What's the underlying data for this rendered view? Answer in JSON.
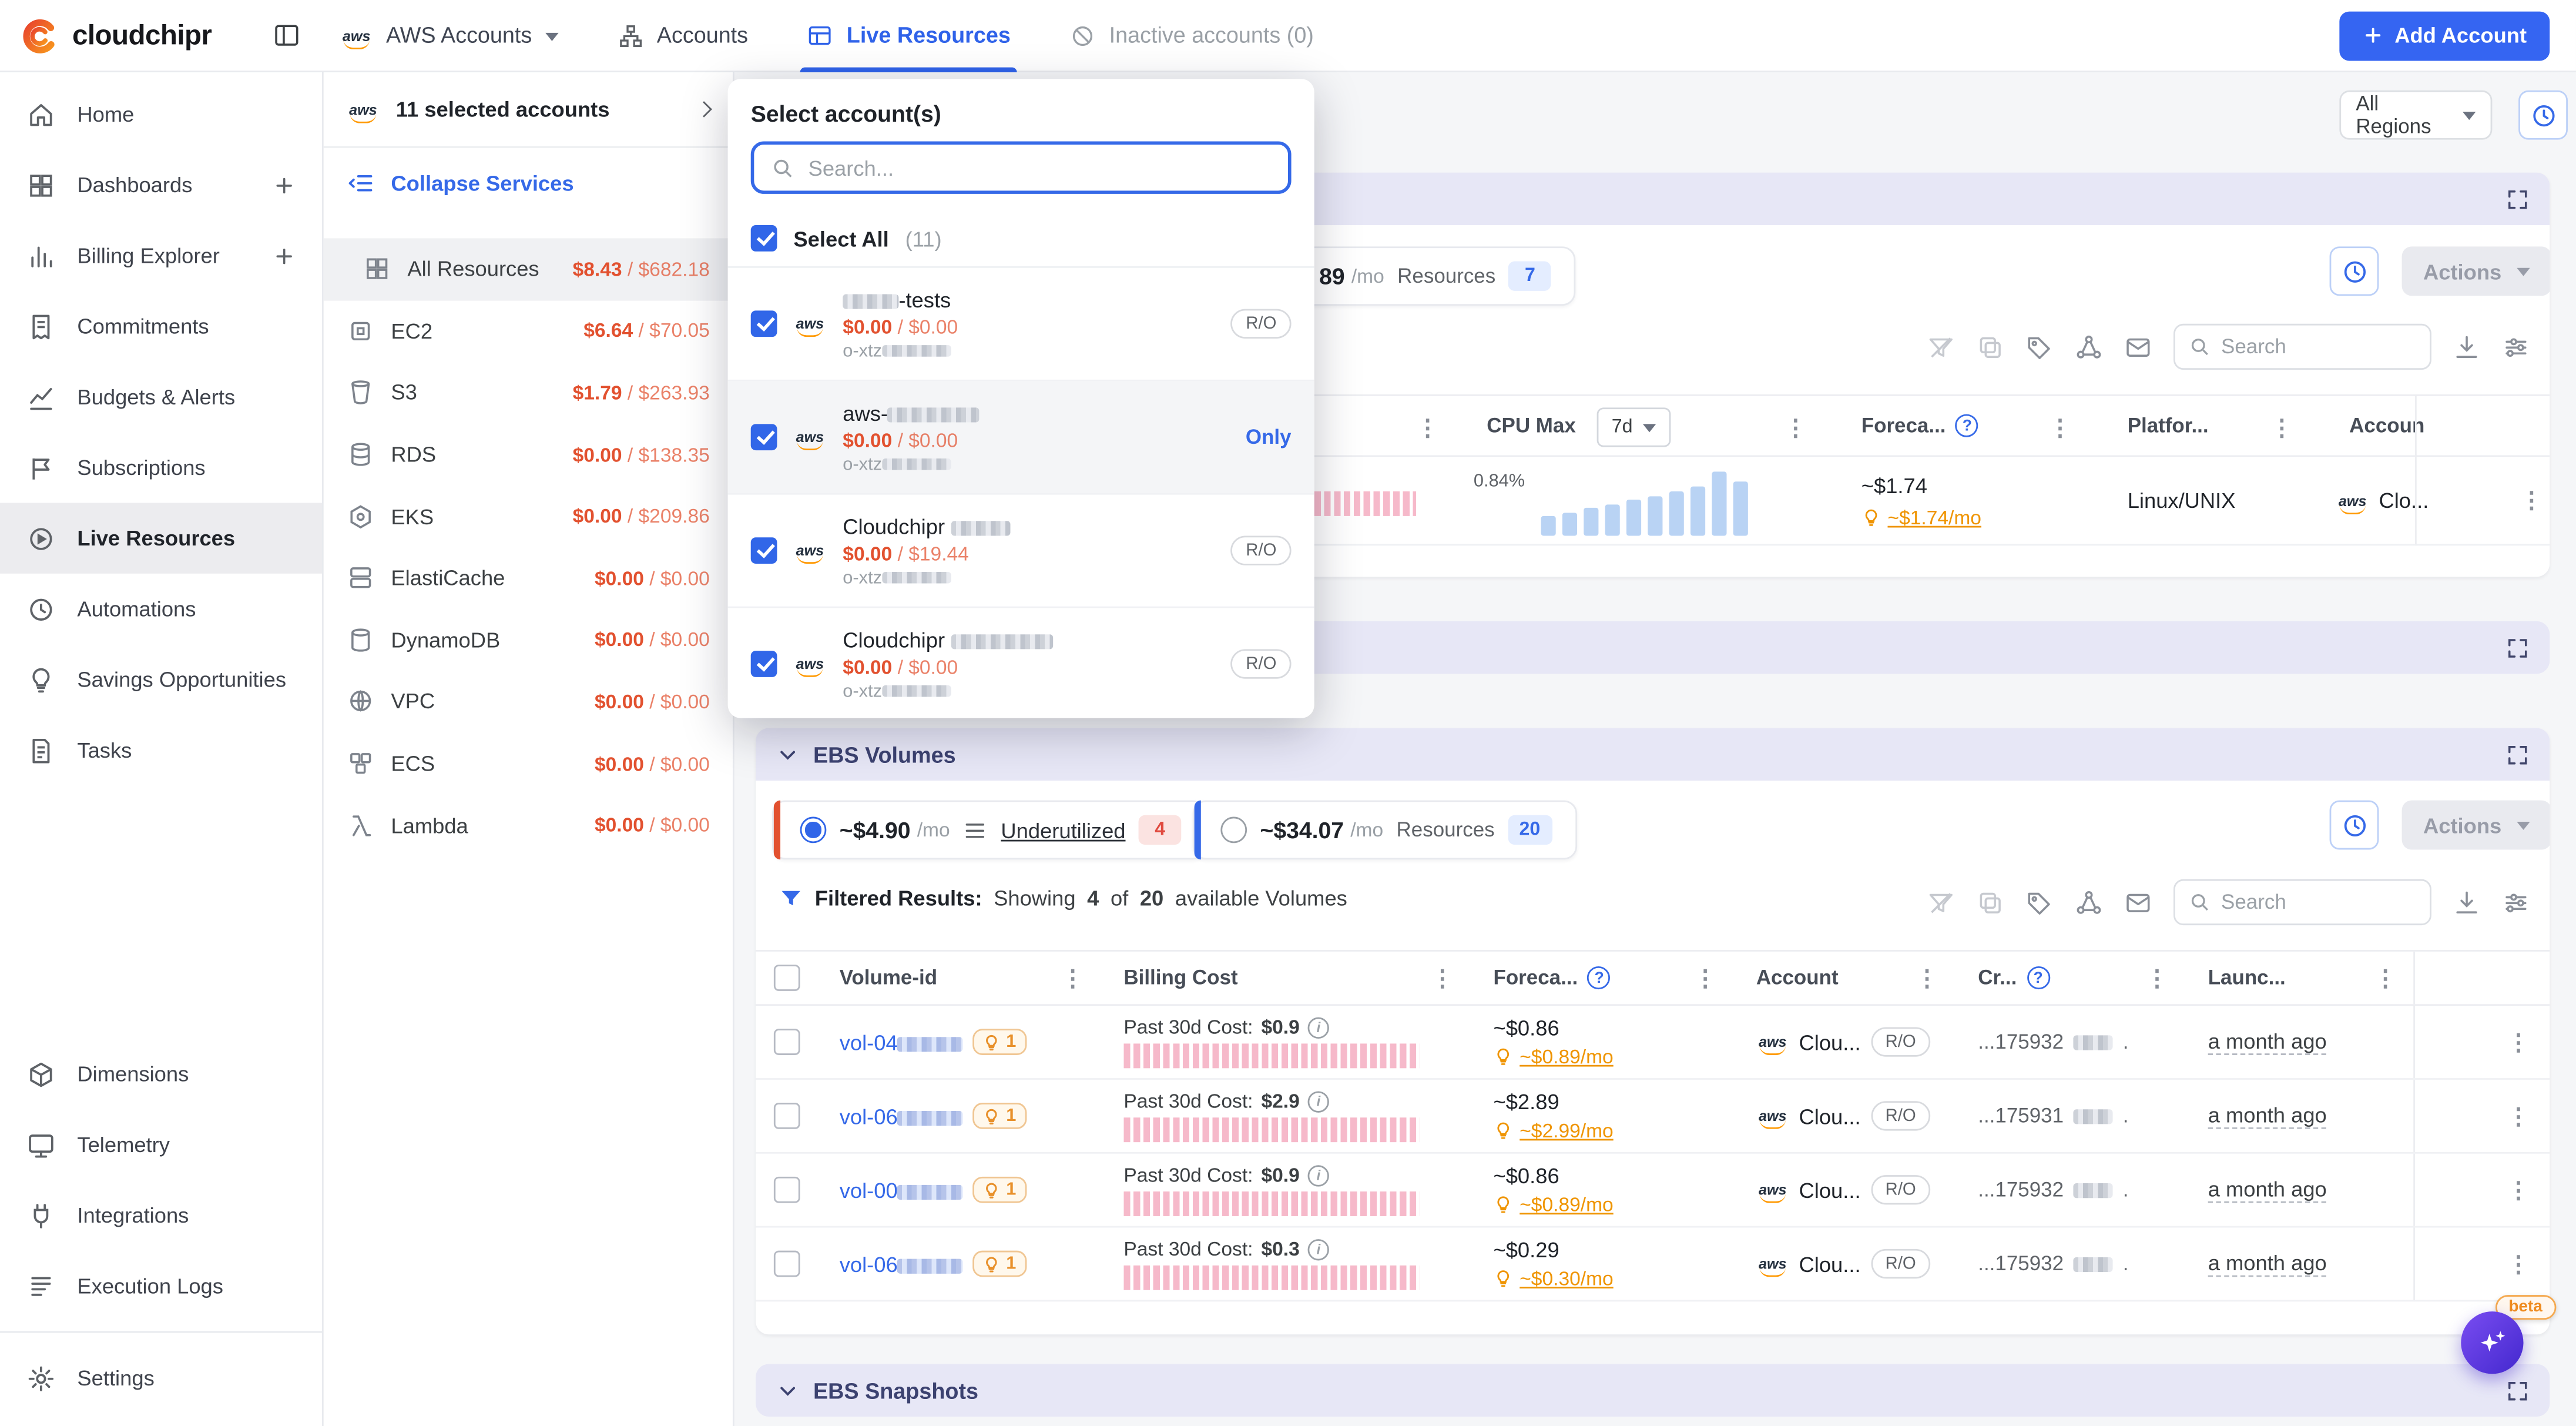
{
  "colors": {
    "accent": "#3569e8",
    "danger": "#e2512f",
    "warning": "#ef9400",
    "section_header": "#e7e7f6"
  },
  "topbar": {
    "brand": "cloudchipr",
    "tab_aws_accounts": "AWS Accounts",
    "tab_accounts": "Accounts",
    "tab_live_resources": "Live Resources",
    "tab_inactive": "Inactive accounts (0)",
    "add_account": "Add Account"
  },
  "sidebar": {
    "items": [
      {
        "label": "Home"
      },
      {
        "label": "Dashboards"
      },
      {
        "label": "Billing Explorer"
      },
      {
        "label": "Commitments"
      },
      {
        "label": "Budgets & Alerts"
      },
      {
        "label": "Subscriptions"
      },
      {
        "label": "Live Resources"
      },
      {
        "label": "Automations"
      },
      {
        "label": "Savings Opportunities"
      },
      {
        "label": "Tasks"
      },
      {
        "label": "Dimensions"
      },
      {
        "label": "Telemetry"
      },
      {
        "label": "Integrations"
      },
      {
        "label": "Execution Logs"
      },
      {
        "label": "Settings"
      }
    ]
  },
  "services": {
    "selected_accounts": "11 selected accounts",
    "collapse": "Collapse Services",
    "items": [
      {
        "name": "All Resources",
        "cost": "$8.43",
        "total": " / $682.18"
      },
      {
        "name": "EC2",
        "cost": "$6.64",
        "total": " / $70.05"
      },
      {
        "name": "S3",
        "cost": "$1.79",
        "total": " / $263.93"
      },
      {
        "name": "RDS",
        "cost": "$0.00",
        "total": " / $138.35"
      },
      {
        "name": "EKS",
        "cost": "$0.00",
        "total": " / $209.86"
      },
      {
        "name": "ElastiCache",
        "cost": "$0.00",
        "total": " / $0.00"
      },
      {
        "name": "DynamoDB",
        "cost": "$0.00",
        "total": " / $0.00"
      },
      {
        "name": "VPC",
        "cost": "$0.00",
        "total": " / $0.00"
      },
      {
        "name": "ECS",
        "cost": "$0.00",
        "total": " / $0.00"
      },
      {
        "name": "Lambda",
        "cost": "$0.00",
        "total": " / $0.00"
      }
    ]
  },
  "popover": {
    "title": "Select account(s)",
    "search_placeholder": "Search...",
    "select_all": "Select All",
    "select_all_count": "(11)",
    "accounts": [
      {
        "prefix": "",
        "suffix": "-tests",
        "cost": "$0.00",
        "total": " / $0.00",
        "org": "o-xtz",
        "badge": "R/O"
      },
      {
        "prefix": "aws-",
        "suffix": "",
        "cost": "$0.00",
        "total": " / $0.00",
        "org": "o-xtz",
        "badge": "Only"
      },
      {
        "prefix": "Cloudchipr ",
        "suffix": "",
        "cost": "$0.00",
        "total": " / $19.44",
        "org": "o-xtz",
        "badge": "R/O"
      },
      {
        "prefix": "Cloudchipr ",
        "suffix": "",
        "cost": "$0.00",
        "total": " / $0.00",
        "org": "o-xtz",
        "badge": "R/O"
      }
    ]
  },
  "content": {
    "regions": "All Regions",
    "search_placeholder": "Search",
    "actions": "Actions",
    "ec2": {
      "summary_value": "89",
      "summary_unit": "/mo",
      "resources_label": "Resources",
      "resources_count": "7",
      "col_cpu": "CPU Max",
      "cpu_period": "7d",
      "col_forecast": "Foreca...",
      "col_platform": "Platfor...",
      "col_account": "Accoun",
      "row": {
        "cpu_max": "0.84%",
        "forecast": "~$1.74",
        "savings": "~$1.74/mo",
        "platform": "Linux/UNIX",
        "account": "Clo..."
      },
      "cpu_bars": [
        28,
        34,
        40,
        46,
        52,
        58,
        64,
        72,
        92,
        78
      ]
    },
    "ebs": {
      "title": "EBS Volumes",
      "opt1": {
        "value": "~$4.90",
        "unit": "/mo",
        "label": "Underutilized",
        "count": "4"
      },
      "opt2": {
        "value": "~$34.07",
        "unit": "/mo",
        "label": "Resources",
        "count": "20"
      },
      "filtered": {
        "prefix": "Filtered Results:",
        "t1": "Showing",
        "n1": "4",
        "t2": "of",
        "n2": "20",
        "t3": "available Volumes"
      },
      "columns": {
        "volume": "Volume-id",
        "billing": "Billing Cost",
        "forecast": "Foreca...",
        "account": "Account",
        "created": "Cr...",
        "launched": "Launc..."
      },
      "cost_label": "Past 30d Cost:",
      "rows": [
        {
          "id": "vol-04",
          "bulb": "1",
          "cost": "$0.9",
          "forecast": "~$0.86",
          "savings": "~$0.89/mo",
          "account": "Clou...",
          "badge": "R/O",
          "created": "...175932",
          "created_end": ".",
          "launched": "a month ago"
        },
        {
          "id": "vol-06",
          "bulb": "1",
          "cost": "$2.9",
          "forecast": "~$2.89",
          "savings": "~$2.99/mo",
          "account": "Clou...",
          "badge": "R/O",
          "created": "...175931",
          "created_end": ".",
          "launched": "a month ago"
        },
        {
          "id": "vol-00",
          "bulb": "1",
          "cost": "$0.9",
          "forecast": "~$0.86",
          "savings": "~$0.89/mo",
          "account": "Clou...",
          "badge": "R/O",
          "created": "...175932",
          "created_end": ".",
          "launched": "a month ago"
        },
        {
          "id": "vol-06",
          "bulb": "1",
          "cost": "$0.3",
          "forecast": "~$0.29",
          "savings": "~$0.30/mo",
          "account": "Clou...",
          "badge": "R/O",
          "created": "...175932",
          "created_end": ".",
          "launched": "a month ago"
        }
      ]
    },
    "snapshots_title": "EBS Snapshots",
    "beta": "beta"
  }
}
